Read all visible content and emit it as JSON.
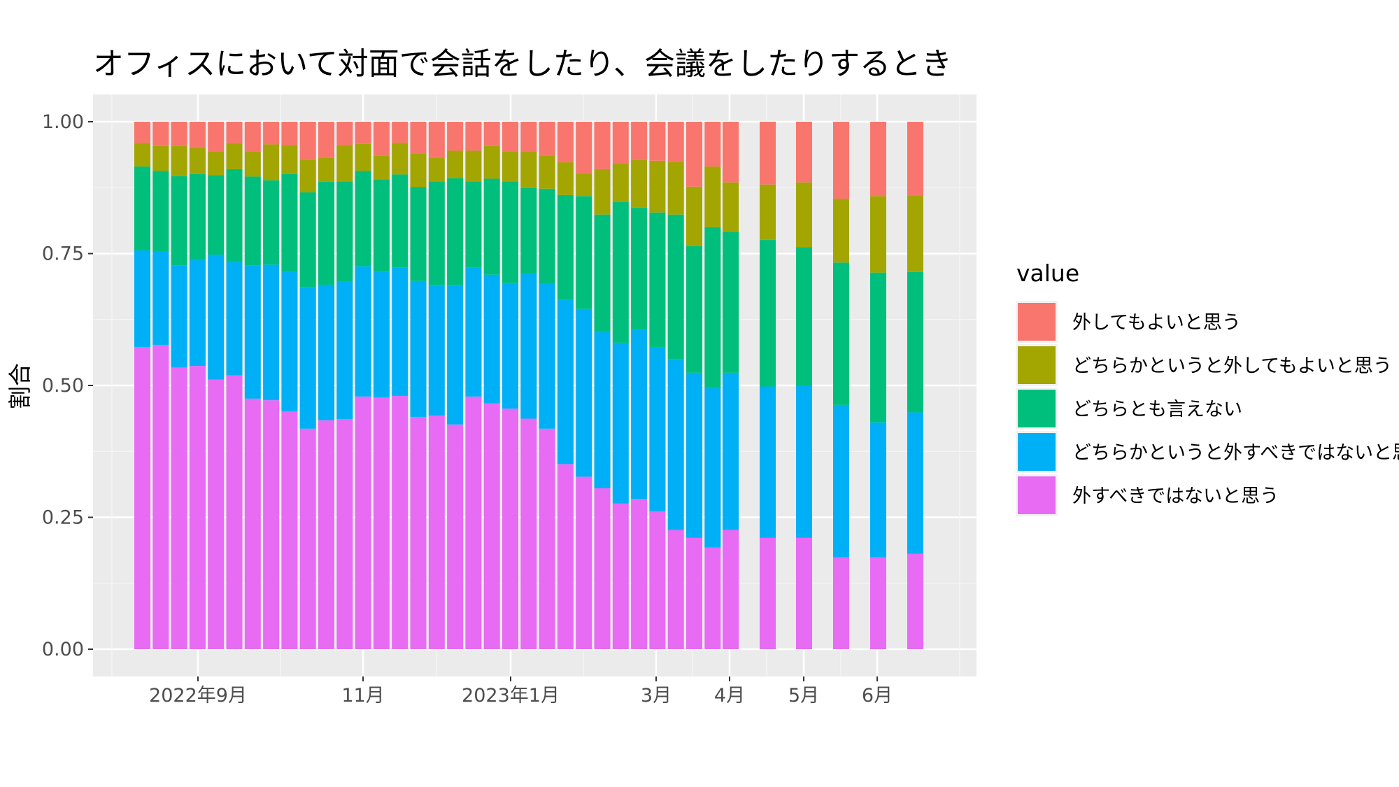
{
  "chart_data": {
    "type": "bar",
    "stacked": true,
    "title": "オフィスにおいて対面で会話をしたり、会議をしたりするとき",
    "xlabel": "",
    "ylabel": "割合",
    "ylim": [
      0,
      1
    ],
    "y_ticks": [
      "0.00",
      "0.25",
      "0.50",
      "0.75",
      "1.00"
    ],
    "x_ticks": [
      "2022年9月",
      "11月",
      "2023年1月",
      "3月",
      "4月",
      "5月",
      "6月"
    ],
    "grid": true,
    "legend": {
      "title": "value",
      "position": "right"
    },
    "series": [
      {
        "name": "外すべきではないと思う",
        "color": "#E76BF3",
        "values": [
          0.573,
          0.577,
          0.534,
          0.537,
          0.511,
          0.519,
          0.475,
          0.472,
          0.451,
          0.418,
          0.434,
          0.436,
          0.479,
          0.477,
          0.48,
          0.44,
          0.443,
          0.426,
          0.479,
          0.466,
          0.456,
          0.437,
          0.418,
          0.351,
          0.327,
          0.305,
          0.276,
          0.285,
          0.261,
          0.226,
          0.211,
          0.193,
          0.226,
          0.211,
          0.211,
          0.174,
          0.174,
          0.181
        ]
      },
      {
        "name": "どちらかというと外すべきではないと思う",
        "color": "#00B0F6",
        "values": [
          0.183,
          0.177,
          0.193,
          0.201,
          0.237,
          0.215,
          0.252,
          0.257,
          0.264,
          0.268,
          0.257,
          0.261,
          0.247,
          0.239,
          0.244,
          0.258,
          0.247,
          0.264,
          0.245,
          0.244,
          0.238,
          0.274,
          0.275,
          0.312,
          0.318,
          0.296,
          0.305,
          0.321,
          0.312,
          0.324,
          0.313,
          0.302,
          0.298,
          0.287,
          0.289,
          0.289,
          0.256,
          0.268
        ]
      },
      {
        "name": "どちらとも言えない",
        "color": "#00BF7D",
        "values": [
          0.159,
          0.153,
          0.17,
          0.163,
          0.151,
          0.176,
          0.169,
          0.16,
          0.186,
          0.18,
          0.195,
          0.19,
          0.181,
          0.175,
          0.176,
          0.178,
          0.197,
          0.203,
          0.163,
          0.182,
          0.193,
          0.163,
          0.18,
          0.198,
          0.214,
          0.223,
          0.267,
          0.231,
          0.255,
          0.274,
          0.24,
          0.305,
          0.267,
          0.278,
          0.262,
          0.27,
          0.284,
          0.266
        ]
      },
      {
        "name": "どちらかというと外してもよいと思う",
        "color": "#A3A500",
        "values": [
          0.045,
          0.047,
          0.057,
          0.05,
          0.045,
          0.049,
          0.048,
          0.068,
          0.055,
          0.062,
          0.046,
          0.069,
          0.051,
          0.045,
          0.06,
          0.063,
          0.044,
          0.052,
          0.058,
          0.062,
          0.056,
          0.07,
          0.062,
          0.062,
          0.043,
          0.086,
          0.073,
          0.091,
          0.098,
          0.1,
          0.113,
          0.115,
          0.094,
          0.105,
          0.123,
          0.121,
          0.145,
          0.145
        ]
      },
      {
        "name": "外してもよいと思う",
        "color": "#F8766D",
        "values": [
          0.04,
          0.046,
          0.046,
          0.049,
          0.056,
          0.041,
          0.056,
          0.043,
          0.044,
          0.072,
          0.068,
          0.044,
          0.042,
          0.064,
          0.04,
          0.061,
          0.069,
          0.055,
          0.055,
          0.046,
          0.057,
          0.056,
          0.065,
          0.077,
          0.098,
          0.09,
          0.079,
          0.072,
          0.074,
          0.076,
          0.123,
          0.085,
          0.115,
          0.119,
          0.115,
          0.146,
          0.141,
          0.14
        ]
      }
    ]
  }
}
